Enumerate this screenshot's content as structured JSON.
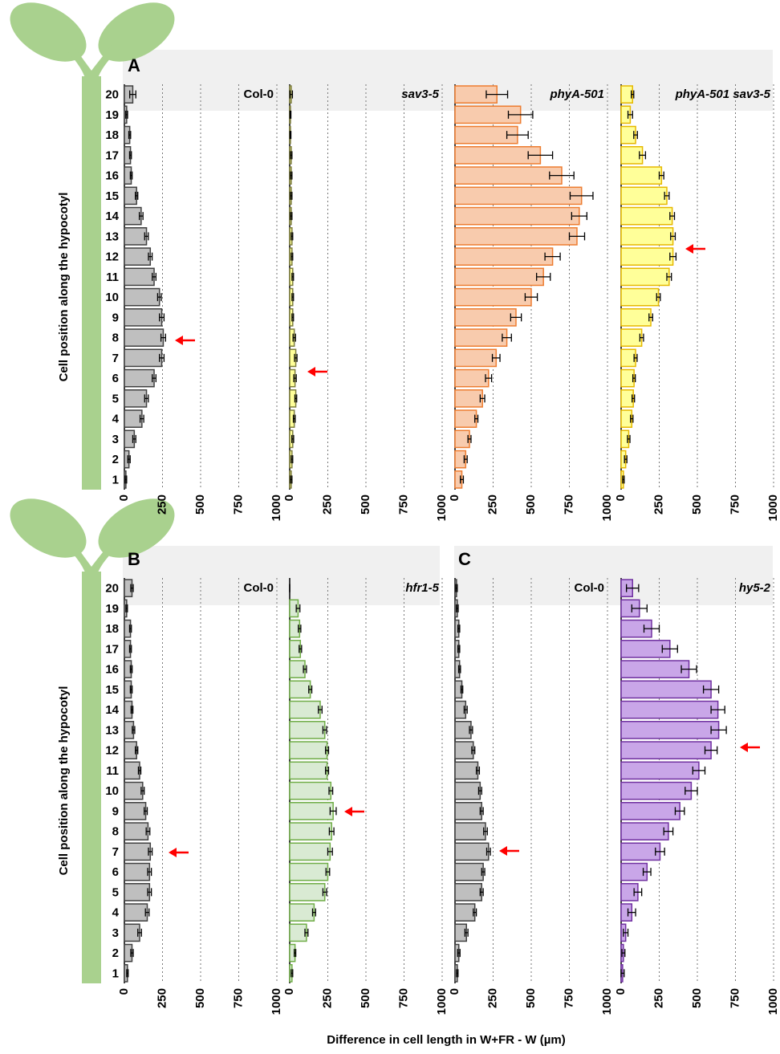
{
  "xlabel": "Difference in cell length in W+FR - W (µm)",
  "chart_data": [
    {
      "type": "bar",
      "panel": "A",
      "title": "Col-0",
      "italic": false,
      "ylabel": "Cell position along the hypocotyl",
      "categories": [
        "1",
        "2",
        "3",
        "4",
        "5",
        "6",
        "7",
        "8",
        "9",
        "10",
        "11",
        "12",
        "13",
        "14",
        "15",
        "16",
        "17",
        "18",
        "19",
        "20"
      ],
      "values": [
        10,
        30,
        65,
        115,
        145,
        195,
        245,
        255,
        245,
        230,
        195,
        170,
        145,
        110,
        80,
        45,
        40,
        35,
        15,
        55
      ],
      "errors": [
        5,
        8,
        10,
        12,
        12,
        12,
        15,
        15,
        15,
        12,
        12,
        12,
        12,
        12,
        8,
        6,
        6,
        6,
        6,
        20
      ],
      "color": "#bfbfbf",
      "edge_color": "#404040",
      "xlim": [
        0,
        1000
      ],
      "xticks": [
        0,
        250,
        500,
        750,
        1000
      ],
      "grid": true
    },
    {
      "type": "bar",
      "title": "sav3-5",
      "italic": true,
      "values": [
        10,
        15,
        20,
        30,
        40,
        35,
        40,
        30,
        20,
        20,
        20,
        15,
        15,
        10,
        10,
        10,
        10,
        5,
        5,
        10
      ],
      "errors": [
        5,
        5,
        6,
        6,
        6,
        8,
        8,
        8,
        5,
        5,
        5,
        5,
        5,
        5,
        5,
        5,
        5,
        3,
        3,
        8
      ],
      "color": "#ffff99",
      "edge_color": "#7f7f3f",
      "xlim": [
        0,
        1000
      ],
      "xticks": [
        0,
        250,
        500,
        750,
        1000
      ],
      "grid": true
    },
    {
      "type": "bar",
      "title": "phyA-501",
      "italic": true,
      "values": [
        45,
        70,
        95,
        140,
        180,
        220,
        270,
        340,
        400,
        500,
        580,
        640,
        800,
        815,
        830,
        700,
        560,
        410,
        430,
        275
      ],
      "errors": [
        10,
        10,
        10,
        10,
        15,
        20,
        25,
        30,
        35,
        40,
        45,
        50,
        50,
        50,
        75,
        80,
        80,
        70,
        80,
        70
      ],
      "color": "#f8cbad",
      "edge_color": "#ed7d31",
      "xlim": [
        0,
        1000
      ],
      "xticks": [
        0,
        250,
        500,
        750,
        1000
      ],
      "grid": true
    },
    {
      "type": "bar",
      "title": "phyA-501 sav3-5",
      "italic": true,
      "values": [
        15,
        30,
        50,
        70,
        80,
        85,
        95,
        135,
        195,
        245,
        315,
        340,
        340,
        335,
        300,
        265,
        140,
        95,
        60,
        75
      ],
      "errors": [
        5,
        8,
        8,
        8,
        8,
        8,
        10,
        12,
        12,
        12,
        15,
        20,
        15,
        15,
        15,
        15,
        20,
        12,
        15,
        8
      ],
      "color": "#ffff99",
      "edge_color": "#e6b800",
      "xlim": [
        0,
        1000
      ],
      "xticks": [
        0,
        250,
        500,
        750,
        1000
      ],
      "grid": true
    },
    {
      "type": "bar",
      "panel": "B",
      "title": "Col-0",
      "italic": false,
      "ylabel": "Cell position along the hypocotyl",
      "categories": [
        "1",
        "2",
        "3",
        "4",
        "5",
        "6",
        "7",
        "8",
        "9",
        "10",
        "11",
        "12",
        "13",
        "14",
        "15",
        "16",
        "17",
        "18",
        "19",
        "20"
      ],
      "values": [
        20,
        50,
        100,
        150,
        165,
        165,
        170,
        155,
        140,
        120,
        100,
        80,
        60,
        50,
        45,
        45,
        40,
        40,
        15,
        50
      ],
      "errors": [
        5,
        8,
        12,
        12,
        12,
        12,
        12,
        12,
        10,
        10,
        8,
        8,
        8,
        6,
        6,
        6,
        6,
        6,
        5,
        8
      ],
      "color": "#bfbfbf",
      "edge_color": "#404040",
      "xlim": [
        0,
        1000
      ],
      "xticks": [
        0,
        250,
        500,
        750,
        1000
      ],
      "grid": true
    },
    {
      "type": "bar",
      "title": "hfr1-5",
      "italic": true,
      "values": [
        15,
        35,
        110,
        160,
        230,
        250,
        265,
        275,
        285,
        270,
        245,
        245,
        230,
        200,
        135,
        100,
        70,
        65,
        55,
        0
      ],
      "errors": [
        5,
        5,
        10,
        10,
        12,
        12,
        15,
        15,
        20,
        12,
        10,
        10,
        12,
        12,
        10,
        10,
        8,
        8,
        12,
        0
      ],
      "color": "#d9ead3",
      "edge_color": "#70ad47",
      "xlim": [
        0,
        1000
      ],
      "xticks": [
        0,
        250,
        500,
        750,
        1000
      ],
      "grid": true
    },
    {
      "type": "bar",
      "panel": "C",
      "title": "Col-0",
      "italic": false,
      "values": [
        15,
        25,
        75,
        130,
        175,
        185,
        220,
        200,
        175,
        165,
        150,
        120,
        105,
        70,
        45,
        30,
        25,
        25,
        15,
        10
      ],
      "errors": [
        5,
        8,
        10,
        10,
        10,
        10,
        12,
        12,
        10,
        10,
        10,
        10,
        10,
        10,
        6,
        6,
        6,
        6,
        6,
        5
      ],
      "color": "#bfbfbf",
      "edge_color": "#404040",
      "xlim": [
        0,
        1000
      ],
      "xticks": [
        0,
        250,
        500,
        750,
        1000
      ],
      "grid": true
    },
    {
      "type": "bar",
      "title": "hy5-2",
      "italic": true,
      "values": [
        10,
        15,
        30,
        70,
        110,
        170,
        255,
        310,
        385,
        460,
        510,
        590,
        640,
        635,
        590,
        445,
        320,
        200,
        120,
        75
      ],
      "errors": [
        10,
        10,
        15,
        25,
        25,
        25,
        30,
        30,
        30,
        40,
        40,
        40,
        50,
        45,
        50,
        50,
        50,
        50,
        50,
        40
      ],
      "color": "#c9a6e8",
      "edge_color": "#7030a0",
      "xlim": [
        0,
        1000
      ],
      "xticks": [
        0,
        250,
        500,
        750,
        1000
      ],
      "grid": true
    }
  ]
}
